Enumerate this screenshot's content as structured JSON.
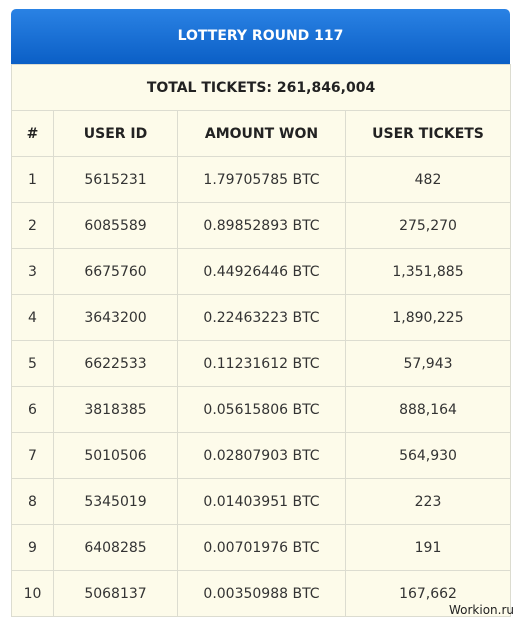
{
  "header": {
    "title": "LOTTERY ROUND 117"
  },
  "summary": {
    "total": "TOTAL TICKETS: 261,846,004"
  },
  "table": {
    "columns": [
      "#",
      "USER ID",
      "AMOUNT WON",
      "USER TICKETS"
    ],
    "rows": [
      [
        "1",
        "5615231",
        "1.79705785 BTC",
        "482"
      ],
      [
        "2",
        "6085589",
        "0.89852893 BTC",
        "275,270"
      ],
      [
        "3",
        "6675760",
        "0.44926446 BTC",
        "1,351,885"
      ],
      [
        "4",
        "3643200",
        "0.22463223 BTC",
        "1,890,225"
      ],
      [
        "5",
        "6622533",
        "0.11231612 BTC",
        "57,943"
      ],
      [
        "6",
        "3818385",
        "0.05615806 BTC",
        "888,164"
      ],
      [
        "7",
        "5010506",
        "0.02807903 BTC",
        "564,930"
      ],
      [
        "8",
        "5345019",
        "0.01403951 BTC",
        "223"
      ],
      [
        "9",
        "6408285",
        "0.00701976 BTC",
        "191"
      ],
      [
        "10",
        "5068137",
        "0.00350988 BTC",
        "167,662"
      ]
    ]
  },
  "watermark": "Workion.ru"
}
